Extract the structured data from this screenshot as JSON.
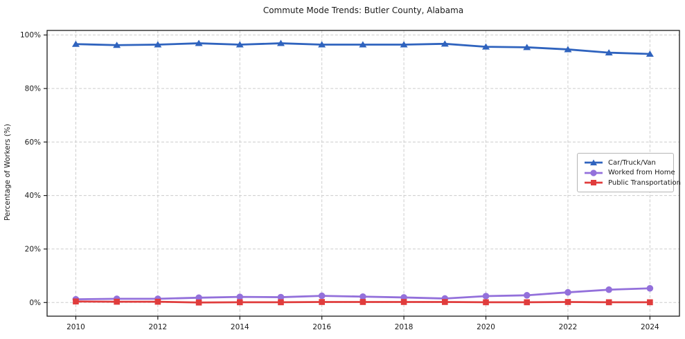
{
  "chart_data": {
    "type": "line",
    "title": "Commute Mode Trends: Butler County, Alabama",
    "xlabel": "",
    "ylabel": "Percentage of Workers (%)",
    "x": [
      2010,
      2011,
      2012,
      2013,
      2014,
      2015,
      2016,
      2017,
      2018,
      2019,
      2020,
      2021,
      2022,
      2023,
      2024
    ],
    "x_ticks": [
      2010,
      2012,
      2014,
      2016,
      2018,
      2020,
      2022,
      2024
    ],
    "x_tick_labels": [
      "2010",
      "2012",
      "2014",
      "2016",
      "2018",
      "2020",
      "2022",
      "2024"
    ],
    "y_ticks": [
      0,
      20,
      40,
      60,
      80,
      100
    ],
    "y_tick_labels": [
      "0%",
      "20%",
      "40%",
      "60%",
      "80%",
      "100%"
    ],
    "xlim": [
      2009.3,
      2024.72
    ],
    "ylim": [
      -5.1,
      101.7
    ],
    "grid": true,
    "grid_style": "dashed",
    "legend_position": "center right",
    "series": [
      {
        "name": "Car/Truck/Van",
        "color": "#2f63be",
        "marker": "triangle",
        "values": [
          96.6,
          96.2,
          96.4,
          96.9,
          96.4,
          96.9,
          96.4,
          96.4,
          96.4,
          96.7,
          95.6,
          95.4,
          94.6,
          93.4,
          92.9
        ]
      },
      {
        "name": "Worked from Home",
        "color": "#9370db",
        "marker": "circle",
        "values": [
          1.2,
          1.4,
          1.4,
          1.8,
          2.1,
          2.0,
          2.5,
          2.2,
          1.9,
          1.5,
          2.4,
          2.7,
          3.8,
          4.8,
          5.3
        ]
      },
      {
        "name": "Public Transportation",
        "color": "#e03c3c",
        "marker": "square",
        "values": [
          0.4,
          0.3,
          0.3,
          0.0,
          0.1,
          0.1,
          0.2,
          0.2,
          0.2,
          0.2,
          0.1,
          0.1,
          0.2,
          0.1,
          0.1
        ]
      }
    ]
  }
}
